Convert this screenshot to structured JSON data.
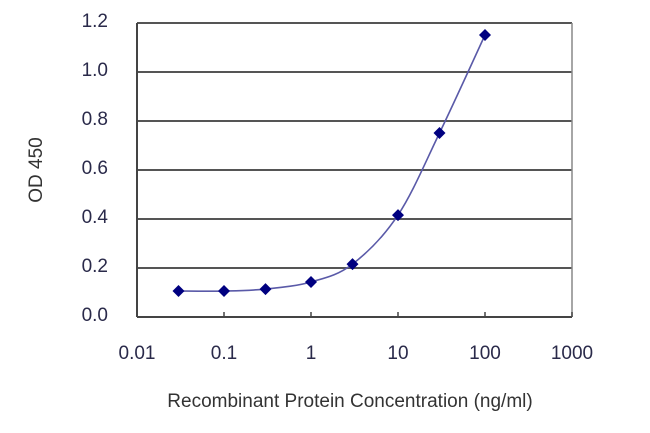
{
  "chart_data": {
    "type": "line",
    "title": "",
    "xlabel": "Recombinant Protein Concentration (ng/ml)",
    "ylabel": "OD 450",
    "x_scale": "log",
    "xlim": [
      0.01,
      1000
    ],
    "ylim": [
      0.0,
      1.2
    ],
    "x_ticks": [
      "0.01",
      "0.1",
      "1",
      "10",
      "100",
      "1000"
    ],
    "y_ticks": [
      "0.0",
      "0.2",
      "0.4",
      "0.6",
      "0.8",
      "1.0",
      "1.2"
    ],
    "grid": "horizontal",
    "legend": null,
    "series": [
      {
        "name": "OD 450",
        "x": [
          0.03,
          0.1,
          0.3,
          1,
          3,
          10,
          30,
          100
        ],
        "values": [
          0.106,
          0.106,
          0.114,
          0.143,
          0.216,
          0.416,
          0.751,
          1.151
        ],
        "marker": "diamond",
        "marker_color": "#000080",
        "line_color": "#5a5aa8"
      }
    ]
  },
  "colors": {
    "grid": "#555555",
    "axis": "#444444",
    "text": "#2a2a4a"
  }
}
